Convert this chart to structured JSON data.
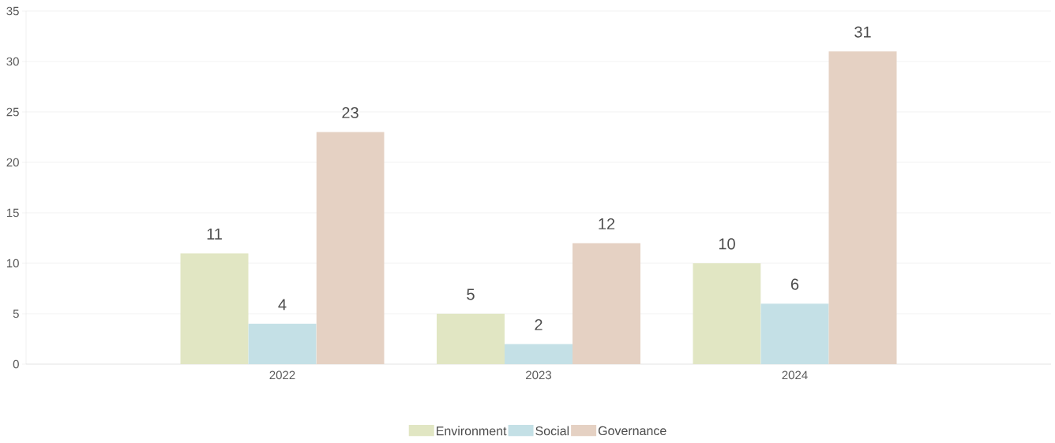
{
  "chart_data": {
    "type": "bar",
    "categories": [
      "2022",
      "2023",
      "2024"
    ],
    "series": [
      {
        "name": "Environment",
        "color": "#e1e6c3",
        "values": [
          11,
          5,
          10
        ]
      },
      {
        "name": "Social",
        "color": "#c4e0e6",
        "values": [
          4,
          2,
          6
        ]
      },
      {
        "name": "Governance",
        "color": "#e5d1c3",
        "values": [
          23,
          12,
          31
        ]
      }
    ],
    "ylim": [
      0,
      35
    ],
    "yticks": [
      0,
      5,
      10,
      15,
      20,
      25,
      30,
      35
    ],
    "grid": "y",
    "legend": "bottom",
    "data_labels": true
  }
}
